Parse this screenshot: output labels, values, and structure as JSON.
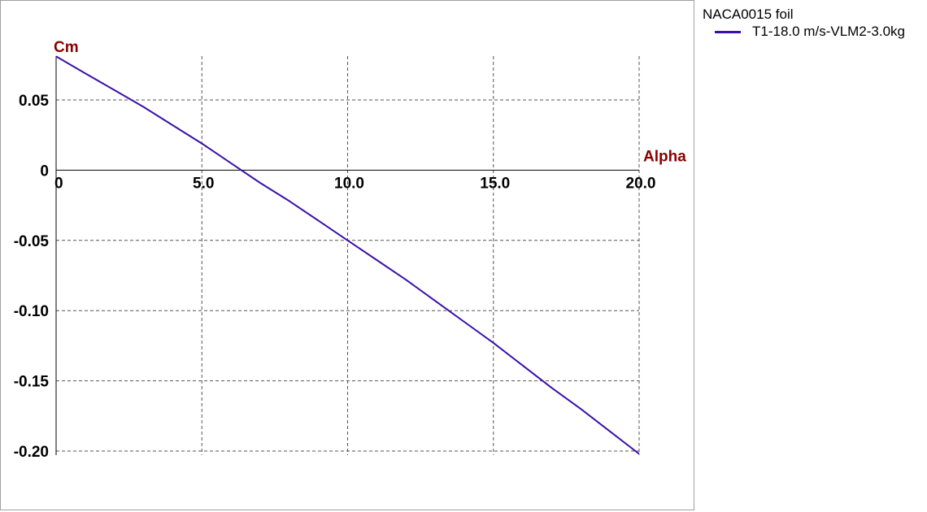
{
  "chart_data": {
    "type": "line",
    "xlabel": "Alpha",
    "ylabel": "Cm",
    "xlim": [
      0,
      20
    ],
    "ylim": [
      -0.2,
      0.05
    ],
    "xticks": [
      0,
      5,
      10,
      15,
      20
    ],
    "xtick_labels": [
      "0",
      "5.0",
      "10.0",
      "15.0",
      "20.0"
    ],
    "yticks": [
      0.05,
      0,
      -0.05,
      -0.1,
      -0.15,
      -0.2
    ],
    "ytick_labels": [
      "0.05",
      "0",
      "-0.05",
      "-0.10",
      "-0.15",
      "-0.20"
    ],
    "grid": true,
    "grid_style": "dashed",
    "legend_title": "NACA0015 foil",
    "legend_position": "right",
    "series": [
      {
        "name": "T1-18.0 m/s-VLM2-3.0kg",
        "color": "#3a10a8",
        "x": [
          0,
          1,
          2,
          3,
          4,
          5,
          6,
          7,
          8,
          9,
          10,
          11,
          12,
          13,
          14,
          15,
          16,
          17,
          18,
          19,
          20
        ],
        "y": [
          0.081,
          0.069,
          0.057,
          0.045,
          0.032,
          0.019,
          0.005,
          -0.009,
          -0.022,
          -0.036,
          -0.05,
          -0.064,
          -0.078,
          -0.093,
          -0.108,
          -0.123,
          -0.139,
          -0.155,
          -0.17,
          -0.186,
          -0.202
        ]
      }
    ]
  }
}
